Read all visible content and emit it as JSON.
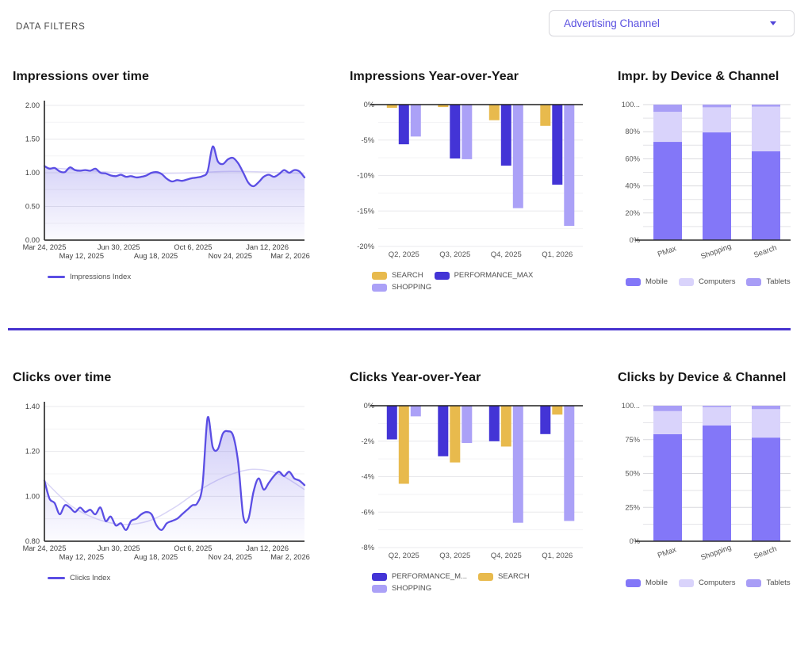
{
  "page": {
    "background": "#ffffff",
    "accent": "#4733cf"
  },
  "header": {
    "filters_label": "DATA FILTERS",
    "channel_dropdown": {
      "value": "Advertising Channel"
    }
  },
  "colors": {
    "line_index": "#5b4ee4",
    "trend": "#d9d5f6",
    "performance_max": "#4334d6",
    "search": "#e8ba4d",
    "shopping": "#aba1f7",
    "mobile": "#8377f8",
    "computers": "#d9d3fb",
    "tablets": "#a89df6",
    "divider": "#4733cf"
  },
  "chart_data": [
    {
      "type": "line",
      "title": "Impressions over time",
      "ylim": [
        0,
        2
      ],
      "yticks": [
        {
          "v": 2,
          "label": "2.00"
        },
        {
          "v": 1.5,
          "label": "1.50"
        },
        {
          "v": 1,
          "label": "1.00"
        },
        {
          "v": 0.5,
          "label": "0.50"
        },
        {
          "v": 0,
          "label": "0.00"
        }
      ],
      "minor_ticks": [
        0.25,
        0.75,
        1.25,
        1.75
      ],
      "x_labels": [
        "Mar 24, 2025",
        "May 12, 2025",
        "Jun 30, 2025",
        "Aug 18, 2025",
        "Oct 6, 2025",
        "Nov 24, 2025",
        "Jan 12, 2026",
        "Mar 2, 2026"
      ],
      "grid": true,
      "series": [
        {
          "name": "Impressions Index",
          "color": "#5b4ee4",
          "values": [
            1.1,
            1.06,
            1.07,
            1.02,
            1.01,
            1.08,
            1.04,
            1.03,
            1.04,
            1.03,
            1.06,
            1.0,
            0.99,
            0.96,
            0.95,
            0.97,
            0.94,
            0.95,
            0.93,
            0.94,
            0.96,
            1.0,
            1.01,
            0.98,
            0.91,
            0.87,
            0.89,
            0.88,
            0.9,
            0.92,
            0.93,
            0.95,
            1.02,
            1.39,
            1.17,
            1.13,
            1.2,
            1.22,
            1.14,
            1.0,
            0.85,
            0.8,
            0.86,
            0.94,
            0.97,
            0.94,
            0.98,
            1.04,
            1.0,
            1.04,
            1.02,
            0.93
          ]
        }
      ],
      "trend": {
        "color": "#d9d5f6",
        "values": [
          1.08,
          1.04,
          1.0,
          0.99,
          1.0,
          1.02,
          1.01,
          0.99
        ]
      },
      "legend": [
        {
          "label": "Impressions Index",
          "color": "#5b4ee4",
          "shape": "line"
        }
      ]
    },
    {
      "type": "bar_grouped",
      "title": "Impressions Year-over-Year",
      "ylim": [
        -20,
        0
      ],
      "yticks": [
        {
          "v": 0,
          "label": "0%"
        },
        {
          "v": -5,
          "label": "-5%"
        },
        {
          "v": -10,
          "label": "-10%"
        },
        {
          "v": -15,
          "label": "-15%"
        },
        {
          "v": -20,
          "label": "-20%"
        }
      ],
      "minor_ticks": [
        -2.5,
        -7.5,
        -12.5,
        -17.5
      ],
      "categories": [
        "Q2, 2025",
        "Q3, 2025",
        "Q4, 2025",
        "Q1, 2026"
      ],
      "series": [
        {
          "label": "SEARCH",
          "color": "#e8ba4d",
          "values": [
            -0.45,
            -0.35,
            -2.2,
            -3.0
          ]
        },
        {
          "label": "PERFORMANCE_MAX",
          "color": "#4334d6",
          "values": [
            -5.6,
            -7.6,
            -8.6,
            -11.3
          ]
        },
        {
          "label": "SHOPPING",
          "color": "#aba1f7",
          "values": [
            -4.5,
            -7.7,
            -14.6,
            -17.1
          ]
        }
      ],
      "legend": [
        {
          "label": "SEARCH",
          "color": "#e8ba4d",
          "shape": "rect"
        },
        {
          "label": "PERFORMANCE_MAX",
          "color": "#4334d6",
          "shape": "rect"
        },
        {
          "label": "SHOPPING",
          "color": "#aba1f7",
          "shape": "rect"
        }
      ]
    },
    {
      "type": "bar_stacked",
      "title": "Impr. by Device & Channel",
      "ylim": [
        0,
        100
      ],
      "yticks": [
        {
          "v": 100,
          "label": "100..."
        },
        {
          "v": 80,
          "label": "80%"
        },
        {
          "v": 60,
          "label": "60%"
        },
        {
          "v": 40,
          "label": "40%"
        },
        {
          "v": 20,
          "label": "20%"
        },
        {
          "v": 0,
          "label": "0%"
        }
      ],
      "minor_ticks": [
        10,
        30,
        50,
        70,
        90
      ],
      "categories": [
        "PMax",
        "Shopping",
        "Search"
      ],
      "series": [
        {
          "label": "Mobile",
          "color": "#8377f8",
          "values": [
            72.5,
            79.5,
            65.5
          ]
        },
        {
          "label": "Computers",
          "color": "#d9d3fb",
          "values": [
            22.2,
            18.5,
            33.0
          ]
        },
        {
          "label": "Tablets",
          "color": "#a89df6",
          "values": [
            5.3,
            2.0,
            1.5
          ]
        }
      ],
      "legend": [
        {
          "label": "Mobile",
          "color": "#8377f8",
          "shape": "rect"
        },
        {
          "label": "Computers",
          "color": "#d9d3fb",
          "shape": "rect"
        },
        {
          "label": "Tablets",
          "color": "#a89df6",
          "shape": "rect"
        }
      ]
    },
    {
      "type": "line",
      "title": "Clicks over time",
      "ylim": [
        0.8,
        1.4
      ],
      "yticks": [
        {
          "v": 1.4,
          "label": "1.40"
        },
        {
          "v": 1.2,
          "label": "1.20"
        },
        {
          "v": 1.0,
          "label": "1.00"
        },
        {
          "v": 0.8,
          "label": "0.80"
        }
      ],
      "minor_ticks": [
        0.9,
        1.1,
        1.3
      ],
      "x_labels": [
        "Mar 24, 2025",
        "May 12, 2025",
        "Jun 30, 2025",
        "Aug 18, 2025",
        "Oct 6, 2025",
        "Nov 24, 2025",
        "Jan 12, 2026",
        "Mar 2, 2026"
      ],
      "grid": true,
      "series": [
        {
          "name": "Clicks Index",
          "color": "#5b4ee4",
          "values": [
            1.07,
            0.99,
            0.97,
            0.92,
            0.96,
            0.95,
            0.93,
            0.95,
            0.93,
            0.94,
            0.92,
            0.95,
            0.89,
            0.91,
            0.87,
            0.88,
            0.85,
            0.89,
            0.9,
            0.92,
            0.93,
            0.92,
            0.87,
            0.85,
            0.88,
            0.89,
            0.9,
            0.92,
            0.94,
            0.96,
            0.97,
            1.05,
            1.35,
            1.22,
            1.21,
            1.28,
            1.29,
            1.27,
            1.15,
            0.91,
            0.9,
            1.02,
            1.08,
            1.03,
            1.06,
            1.09,
            1.11,
            1.09,
            1.11,
            1.08,
            1.07,
            1.05
          ]
        }
      ],
      "trend": {
        "color": "#d9d5f6",
        "values": [
          1.07,
          0.96,
          0.9,
          0.875,
          0.89,
          0.95,
          1.03,
          1.09,
          1.12,
          1.1,
          1.03
        ]
      },
      "legend": [
        {
          "label": "Clicks Index",
          "color": "#5b4ee4",
          "shape": "line"
        }
      ]
    },
    {
      "type": "bar_grouped",
      "title": "Clicks Year-over-Year",
      "ylim": [
        -8,
        0
      ],
      "yticks": [
        {
          "v": 0,
          "label": "0%"
        },
        {
          "v": -2,
          "label": "-2%"
        },
        {
          "v": -4,
          "label": "-4%"
        },
        {
          "v": -6,
          "label": "-6%"
        },
        {
          "v": -8,
          "label": "-8%"
        }
      ],
      "minor_ticks": [
        -1,
        -3,
        -5,
        -7
      ],
      "categories": [
        "Q2, 2025",
        "Q3, 2025",
        "Q4, 2025",
        "Q1, 2026"
      ],
      "series": [
        {
          "label": "PERFORMANCE_M...",
          "color": "#4334d6",
          "values": [
            -1.9,
            -2.85,
            -2.0,
            -1.6
          ]
        },
        {
          "label": "SEARCH",
          "color": "#e8ba4d",
          "values": [
            -4.4,
            -3.2,
            -2.3,
            -0.5
          ]
        },
        {
          "label": "SHOPPING",
          "color": "#aba1f7",
          "values": [
            -0.6,
            -2.1,
            -6.6,
            -6.5
          ]
        }
      ],
      "legend": [
        {
          "label": "PERFORMANCE_M...",
          "color": "#4334d6",
          "shape": "rect"
        },
        {
          "label": "SEARCH",
          "color": "#e8ba4d",
          "shape": "rect"
        },
        {
          "label": "SHOPPING",
          "color": "#aba1f7",
          "shape": "rect"
        }
      ]
    },
    {
      "type": "bar_stacked",
      "title": "Clicks by Device & Channel",
      "ylim": [
        0,
        100
      ],
      "yticks": [
        {
          "v": 100,
          "label": "100..."
        },
        {
          "v": 75,
          "label": "75%"
        },
        {
          "v": 50,
          "label": "50%"
        },
        {
          "v": 25,
          "label": "25%"
        },
        {
          "v": 0,
          "label": "0%"
        }
      ],
      "minor_ticks": [
        12.5,
        37.5,
        62.5,
        87.5
      ],
      "categories": [
        "PMax",
        "Shopping",
        "Search"
      ],
      "series": [
        {
          "label": "Mobile",
          "color": "#8377f8",
          "values": [
            79.0,
            85.5,
            76.5
          ]
        },
        {
          "label": "Computers",
          "color": "#d9d3fb",
          "values": [
            17.0,
            13.5,
            21.0
          ]
        },
        {
          "label": "Tablets",
          "color": "#a89df6",
          "values": [
            4.0,
            1.0,
            2.5
          ]
        }
      ],
      "legend": [
        {
          "label": "Mobile",
          "color": "#8377f8",
          "shape": "rect"
        },
        {
          "label": "Computers",
          "color": "#d9d3fb",
          "shape": "rect"
        },
        {
          "label": "Tablets",
          "color": "#a89df6",
          "shape": "rect"
        }
      ]
    }
  ]
}
